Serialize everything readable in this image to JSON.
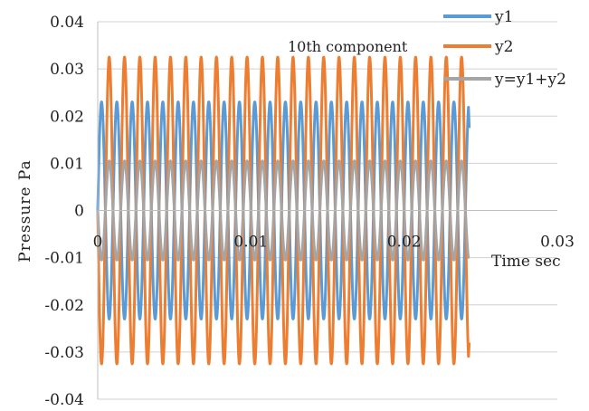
{
  "chart_data": {
    "type": "line",
    "title": "",
    "annotation": "10th component",
    "xlabel": "Time   sec",
    "ylabel": "Pressure  Pa",
    "xlim": [
      0,
      0.03
    ],
    "ylim": [
      -0.04,
      0.04
    ],
    "x_ticks": [
      "0",
      "0.01",
      "0.02",
      "0.03"
    ],
    "y_ticks": [
      "0.04",
      "0.03",
      "0.02",
      "0.01",
      "0",
      "-0.01",
      "-0.02",
      "-0.03",
      "-0.04"
    ],
    "grid": "horizontal",
    "legend_position": "top-right",
    "series": [
      {
        "name": "y1",
        "color": "#5B9BD5",
        "amplitude": 0.023,
        "frequency_hz": 1000,
        "phase_deg": 0,
        "x_end": 0.0242,
        "x_end_value": 0.0175
      },
      {
        "name": "y2",
        "color": "#ED7D31",
        "amplitude": 0.0325,
        "frequency_hz": 1000,
        "phase_deg": 180,
        "x_end": 0.0242,
        "x_end_value": -0.028
      },
      {
        "name": "y=y1+y2",
        "color": "#A5A5A5",
        "amplitude": 0.0105,
        "frequency_hz": 1000,
        "phase_deg": 180,
        "x_end": 0.0242,
        "x_end_value": -0.01
      }
    ]
  }
}
